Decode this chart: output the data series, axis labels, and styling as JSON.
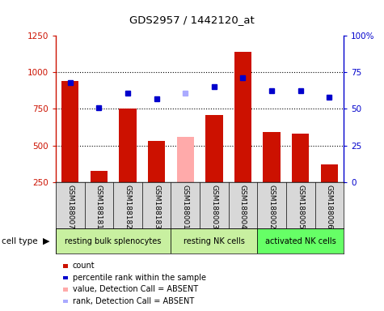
{
  "title": "GDS2957 / 1442120_at",
  "samples": [
    "GSM188007",
    "GSM188181",
    "GSM188182",
    "GSM188183",
    "GSM188001",
    "GSM188003",
    "GSM188004",
    "GSM188002",
    "GSM188005",
    "GSM188006"
  ],
  "counts": [
    940,
    325,
    750,
    530,
    560,
    710,
    1140,
    590,
    580,
    370
  ],
  "percentile_ranks": [
    930,
    755,
    860,
    820,
    855,
    900,
    965,
    875,
    875,
    830
  ],
  "absent_flags": [
    false,
    false,
    false,
    false,
    true,
    false,
    false,
    false,
    false,
    false
  ],
  "cell_groups": [
    {
      "label": "resting bulk splenocytes",
      "indices": [
        0,
        1,
        2,
        3
      ],
      "color": "#c8f0a0"
    },
    {
      "label": "resting NK cells",
      "indices": [
        4,
        5,
        6
      ],
      "color": "#c8f0a0"
    },
    {
      "label": "activated NK cells",
      "indices": [
        7,
        8,
        9
      ],
      "color": "#66ff66"
    }
  ],
  "bar_color_present": "#cc1100",
  "bar_color_absent": "#ffaaaa",
  "dot_color_present": "#0000cc",
  "dot_color_absent": "#aaaaff",
  "ylim_left": [
    250,
    1250
  ],
  "ylim_right": [
    0,
    100
  ],
  "yticks_left": [
    250,
    500,
    750,
    1000,
    1250
  ],
  "yticks_right": [
    0,
    25,
    50,
    75,
    100
  ],
  "yticklabels_right": [
    "0",
    "25",
    "50",
    "75",
    "100%"
  ],
  "grid_values": [
    500,
    750,
    1000
  ],
  "cell_type_label": "cell type",
  "legend_items": [
    {
      "label": "count",
      "color": "#cc1100",
      "type": "square"
    },
    {
      "label": "percentile rank within the sample",
      "color": "#0000cc",
      "type": "square"
    },
    {
      "label": "value, Detection Call = ABSENT",
      "color": "#ffaaaa",
      "type": "square"
    },
    {
      "label": "rank, Detection Call = ABSENT",
      "color": "#aaaaff",
      "type": "square"
    }
  ],
  "bg_color": "#d8d8d8",
  "plot_bg_color": "#ffffff"
}
